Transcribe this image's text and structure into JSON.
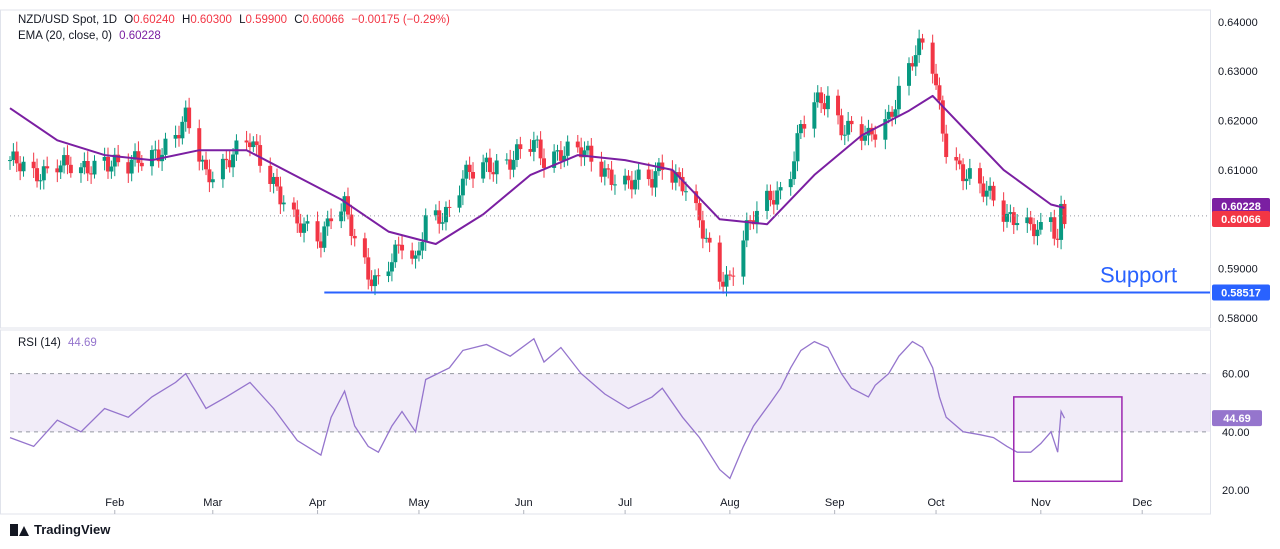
{
  "header": {
    "symbol": "NZD/USD Spot, 1D",
    "open_label": "O",
    "open": "0.60240",
    "high_label": "H",
    "high": "0.60300",
    "low_label": "L",
    "low": "0.59900",
    "close_label": "C",
    "close": "0.60066",
    "change": "−0.00175 (−0.29%)",
    "ema_label": "EMA (20, close, 0)",
    "ema_value": "0.60228",
    "rsi_label": "RSI (14)",
    "rsi_value": "44.69"
  },
  "branding": {
    "name": "TradingView"
  },
  "colors": {
    "up": "#089981",
    "down": "#f23645",
    "ema": "#7b1fa2",
    "rsi": "#9575cd",
    "support": "#2962ff",
    "box": "#9c27b0"
  },
  "chart_data": [
    {
      "type": "candlestick",
      "title": "NZD/USD Spot, 1D",
      "x_tick_labels": [
        "Feb",
        "Mar",
        "Apr",
        "May",
        "Jun",
        "Jul",
        "Aug",
        "Sep",
        "Oct",
        "Nov",
        "Dec"
      ],
      "y_tick_labels": [
        "0.64000",
        "0.63000",
        "0.62000",
        "0.61000",
        "0.59000",
        "0.58000"
      ],
      "ylim": [
        0.58,
        0.642
      ],
      "price_label": "0.60066",
      "ema_label_value": "0.60228",
      "support": {
        "label": "Support",
        "value": 0.58517,
        "value_label": "0.58517"
      },
      "grid": false,
      "close_points": [
        [
          "2024-01-01",
          0.612
        ],
        [
          "2024-01-08",
          0.6085
        ],
        [
          "2024-01-15",
          0.612
        ],
        [
          "2024-01-22",
          0.609
        ],
        [
          "2024-01-29",
          0.6125
        ],
        [
          "2024-02-05",
          0.6105
        ],
        [
          "2024-02-12",
          0.613
        ],
        [
          "2024-02-19",
          0.617
        ],
        [
          "2024-02-22",
          0.62
        ],
        [
          "2024-02-28",
          0.609
        ],
        [
          "2024-03-05",
          0.612
        ],
        [
          "2024-03-12",
          0.6155
        ],
        [
          "2024-03-19",
          0.608
        ],
        [
          "2024-03-26",
          0.5985
        ],
        [
          "2024-04-02",
          0.596
        ],
        [
          "2024-04-05",
          0.602
        ],
        [
          "2024-04-09",
          0.603
        ],
        [
          "2024-04-12",
          0.595
        ],
        [
          "2024-04-16",
          0.588
        ],
        [
          "2024-04-19",
          0.588
        ],
        [
          "2024-04-23",
          0.593
        ],
        [
          "2024-04-26",
          0.595
        ],
        [
          "2024-04-30",
          0.59
        ],
        [
          "2024-05-03",
          0.6
        ],
        [
          "2024-05-10",
          0.602
        ],
        [
          "2024-05-14",
          0.608
        ],
        [
          "2024-05-21",
          0.611
        ],
        [
          "2024-05-28",
          0.612
        ],
        [
          "2024-06-04",
          0.615
        ],
        [
          "2024-06-07",
          0.6125
        ],
        [
          "2024-06-12",
          0.614
        ],
        [
          "2024-06-18",
          0.6135
        ],
        [
          "2024-06-25",
          0.61
        ],
        [
          "2024-07-02",
          0.607
        ],
        [
          "2024-07-09",
          0.608
        ],
        [
          "2024-07-12",
          0.612
        ],
        [
          "2024-07-18",
          0.607
        ],
        [
          "2024-07-23",
          0.599
        ],
        [
          "2024-07-29",
          0.589
        ],
        [
          "2024-08-01",
          0.588
        ],
        [
          "2024-08-05",
          0.596
        ],
        [
          "2024-08-08",
          0.6
        ],
        [
          "2024-08-13",
          0.605
        ],
        [
          "2024-08-16",
          0.606
        ],
        [
          "2024-08-19",
          0.61
        ],
        [
          "2024-08-22",
          0.618
        ],
        [
          "2024-08-26",
          0.623
        ],
        [
          "2024-08-30",
          0.625
        ],
        [
          "2024-09-03",
          0.619
        ],
        [
          "2024-09-06",
          0.618
        ],
        [
          "2024-09-11",
          0.616
        ],
        [
          "2024-09-13",
          0.618
        ],
        [
          "2024-09-17",
          0.621
        ],
        [
          "2024-09-20",
          0.626
        ],
        [
          "2024-09-24",
          0.632
        ],
        [
          "2024-09-27",
          0.635
        ],
        [
          "2024-09-30",
          0.631
        ],
        [
          "2024-10-02",
          0.623
        ],
        [
          "2024-10-04",
          0.615
        ],
        [
          "2024-10-09",
          0.609
        ],
        [
          "2024-10-14",
          0.606
        ],
        [
          "2024-10-18",
          0.605
        ],
        [
          "2024-10-22",
          0.601
        ],
        [
          "2024-10-25",
          0.6
        ],
        [
          "2024-10-29",
          0.5975
        ],
        [
          "2024-11-01",
          0.5975
        ],
        [
          "2024-11-04",
          0.601
        ],
        [
          "2024-11-06",
          0.596
        ],
        [
          "2024-11-07",
          0.6024
        ],
        [
          "2024-11-08",
          0.6007
        ]
      ],
      "ema_points": [
        [
          "2024-01-01",
          0.6225
        ],
        [
          "2024-01-15",
          0.616
        ],
        [
          "2024-01-29",
          0.613
        ],
        [
          "2024-02-12",
          0.612
        ],
        [
          "2024-02-26",
          0.614
        ],
        [
          "2024-03-11",
          0.614
        ],
        [
          "2024-03-25",
          0.609
        ],
        [
          "2024-04-08",
          0.604
        ],
        [
          "2024-04-22",
          0.5975
        ],
        [
          "2024-05-06",
          0.595
        ],
        [
          "2024-05-20",
          0.601
        ],
        [
          "2024-06-03",
          0.609
        ],
        [
          "2024-06-17",
          0.613
        ],
        [
          "2024-07-01",
          0.612
        ],
        [
          "2024-07-15",
          0.61
        ],
        [
          "2024-07-29",
          0.6
        ],
        [
          "2024-08-12",
          0.599
        ],
        [
          "2024-08-26",
          0.609
        ],
        [
          "2024-09-09",
          0.617
        ],
        [
          "2024-09-23",
          0.622
        ],
        [
          "2024-09-30",
          0.625
        ],
        [
          "2024-10-07",
          0.62
        ],
        [
          "2024-10-21",
          0.61
        ],
        [
          "2024-11-04",
          0.603
        ],
        [
          "2024-11-08",
          0.6023
        ]
      ]
    },
    {
      "type": "line",
      "title": "RSI (14)",
      "y_tick_labels": [
        "60.00",
        "40.00",
        "20.00"
      ],
      "ylim": [
        20,
        75
      ],
      "band": [
        40,
        60
      ],
      "value_label": "44.69",
      "points": [
        [
          "2024-01-01",
          38
        ],
        [
          "2024-01-08",
          35
        ],
        [
          "2024-01-15",
          44
        ],
        [
          "2024-01-22",
          40
        ],
        [
          "2024-01-29",
          48
        ],
        [
          "2024-02-05",
          45
        ],
        [
          "2024-02-12",
          52
        ],
        [
          "2024-02-19",
          57
        ],
        [
          "2024-02-22",
          60
        ],
        [
          "2024-02-28",
          48
        ],
        [
          "2024-03-05",
          52
        ],
        [
          "2024-03-12",
          57
        ],
        [
          "2024-03-19",
          48
        ],
        [
          "2024-03-26",
          37
        ],
        [
          "2024-04-02",
          32
        ],
        [
          "2024-04-05",
          45
        ],
        [
          "2024-04-09",
          54
        ],
        [
          "2024-04-12",
          42
        ],
        [
          "2024-04-16",
          35
        ],
        [
          "2024-04-19",
          33
        ],
        [
          "2024-04-23",
          42
        ],
        [
          "2024-04-26",
          47
        ],
        [
          "2024-04-30",
          40
        ],
        [
          "2024-05-03",
          58
        ],
        [
          "2024-05-10",
          62
        ],
        [
          "2024-05-14",
          68
        ],
        [
          "2024-05-21",
          70
        ],
        [
          "2024-05-28",
          66
        ],
        [
          "2024-06-04",
          72
        ],
        [
          "2024-06-07",
          64
        ],
        [
          "2024-06-12",
          69
        ],
        [
          "2024-06-18",
          60
        ],
        [
          "2024-06-25",
          53
        ],
        [
          "2024-07-02",
          48
        ],
        [
          "2024-07-09",
          52
        ],
        [
          "2024-07-12",
          55
        ],
        [
          "2024-07-18",
          45
        ],
        [
          "2024-07-23",
          38
        ],
        [
          "2024-07-29",
          27
        ],
        [
          "2024-08-01",
          24
        ],
        [
          "2024-08-05",
          35
        ],
        [
          "2024-08-08",
          42
        ],
        [
          "2024-08-13",
          50
        ],
        [
          "2024-08-16",
          55
        ],
        [
          "2024-08-19",
          62
        ],
        [
          "2024-08-22",
          68
        ],
        [
          "2024-08-26",
          71
        ],
        [
          "2024-08-30",
          69
        ],
        [
          "2024-09-03",
          60
        ],
        [
          "2024-09-06",
          55
        ],
        [
          "2024-09-11",
          52
        ],
        [
          "2024-09-13",
          56
        ],
        [
          "2024-09-17",
          60
        ],
        [
          "2024-09-20",
          66
        ],
        [
          "2024-09-24",
          71
        ],
        [
          "2024-09-27",
          69
        ],
        [
          "2024-09-30",
          62
        ],
        [
          "2024-10-02",
          52
        ],
        [
          "2024-10-04",
          45
        ],
        [
          "2024-10-09",
          40
        ],
        [
          "2024-10-14",
          39
        ],
        [
          "2024-10-18",
          38
        ],
        [
          "2024-10-22",
          35
        ],
        [
          "2024-10-25",
          33
        ],
        [
          "2024-10-29",
          33
        ],
        [
          "2024-11-01",
          36
        ],
        [
          "2024-11-04",
          40
        ],
        [
          "2024-11-06",
          33
        ],
        [
          "2024-11-07",
          47
        ],
        [
          "2024-11-08",
          44.69
        ]
      ],
      "highlight_box": {
        "from": "2024-10-24",
        "to": "2024-11-25",
        "low": 23,
        "high": 52
      }
    }
  ]
}
